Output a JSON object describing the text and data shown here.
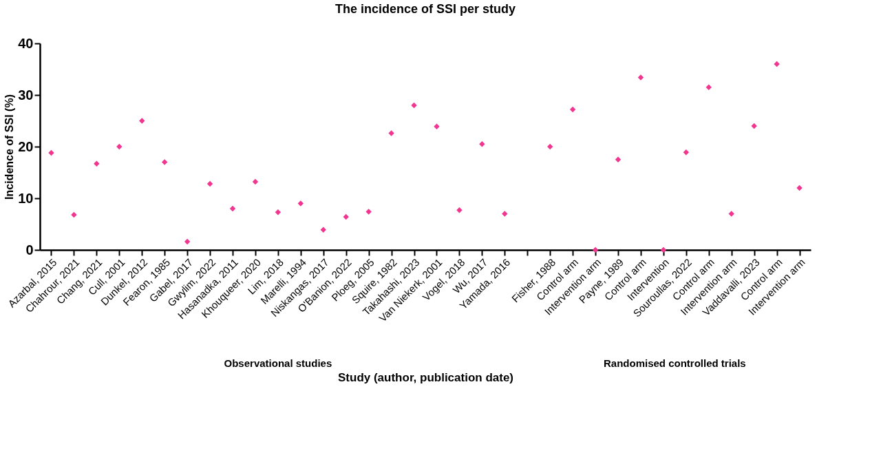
{
  "chart_data": {
    "type": "scatter",
    "title": "The incidence of SSI per study",
    "xlabel": "Study (author, publication date)",
    "ylabel": "Incidence of SSI (%)",
    "categories": [
      "Azarbal, 2015",
      "Chahrour, 2021",
      "Chang, 2021",
      "Cull, 2001",
      "Dunkel, 2012",
      "Fearon, 1985",
      "Gabel, 2017",
      "Gwylim, 2022",
      "Hasanadka, 2011",
      "Khouqueer, 2020",
      "Lim, 2018",
      "Marelli, 1994",
      "Niskangas, 2017",
      "O'Banion, 2022",
      "Ploeg, 2005",
      "Squire, 1982",
      "Takahashi, 2023",
      "Van Niekerk, 2001",
      "Vogel, 2018",
      "Wu, 2017",
      "Yamada, 2016",
      null,
      "Fisher, 1988",
      "Control arm",
      "Intervention arm",
      "Payne, 1989",
      "Control arm",
      "Intervention",
      "Souroullas, 2022",
      "Control arm",
      "Intervention arm",
      "Vaddavalli, 2023",
      "Control arm",
      "Intervention arm"
    ],
    "series": [
      {
        "color": "#f2358f",
        "values": [
          18.8,
          6.8,
          16.7,
          20,
          25,
          17,
          1.6,
          12.8,
          8,
          13.2,
          7.3,
          9,
          3.9,
          6.4,
          7.4,
          22.6,
          28,
          23.9,
          7.7,
          20.5,
          7,
          null,
          20,
          27.2,
          0,
          17.5,
          33.4,
          0,
          18.9,
          31.5,
          7,
          24,
          36,
          12
        ]
      }
    ],
    "marker": "diamond",
    "ylim": [
      0,
      40
    ],
    "yticks": [
      0,
      10,
      20,
      30,
      40
    ],
    "grid": false,
    "annotations": [
      "Observational studies",
      "Randomised controlled trials"
    ]
  }
}
